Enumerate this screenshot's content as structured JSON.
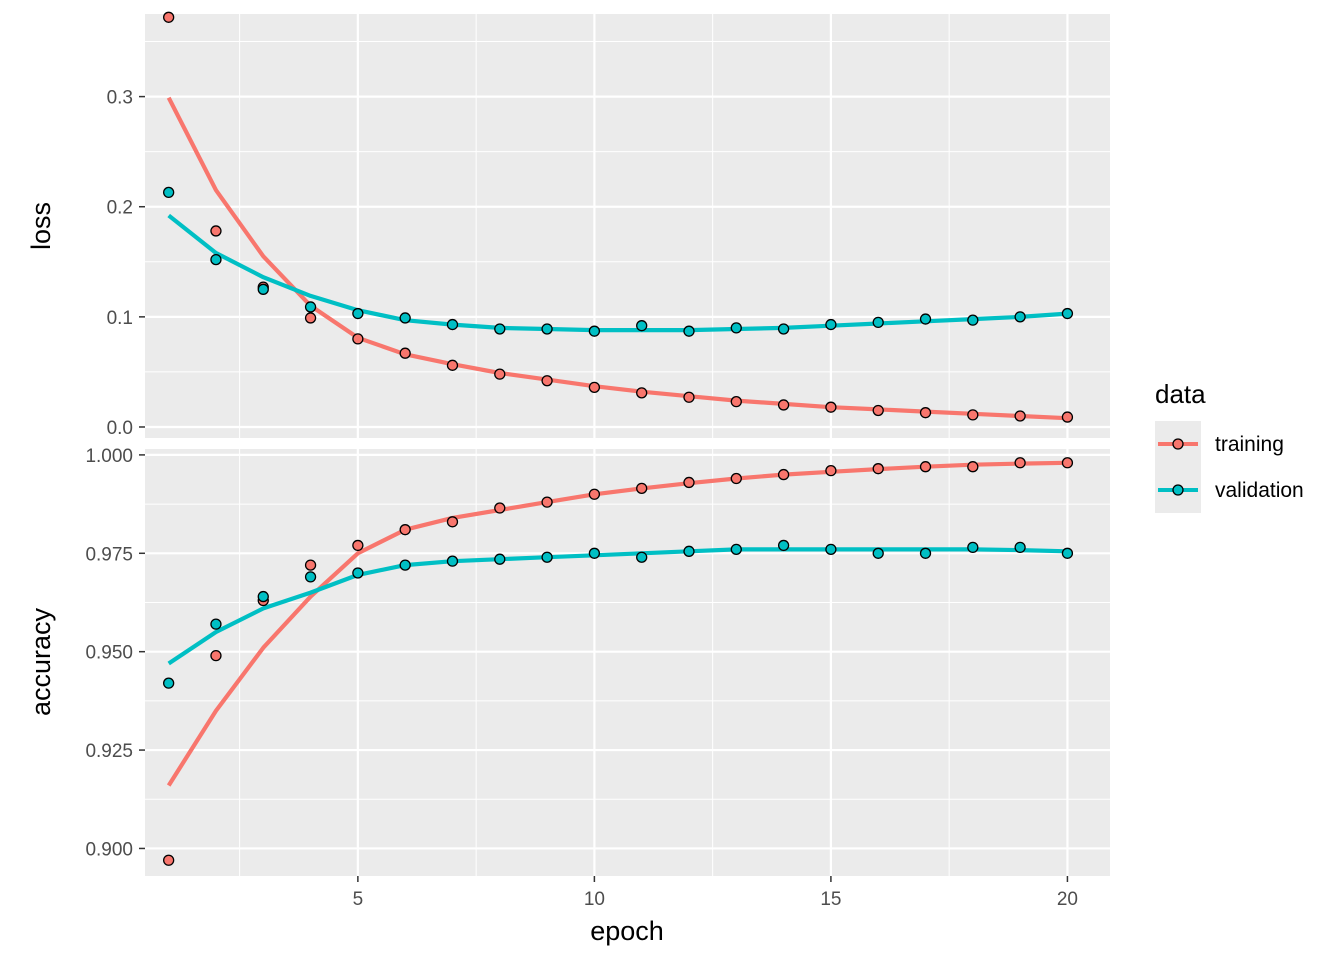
{
  "chart_data": {
    "type": "scatter",
    "facets": [
      "loss",
      "accuracy"
    ],
    "xlabel": "epoch",
    "x_ticks": [
      5,
      10,
      15,
      20
    ],
    "xlim": [
      0.5,
      20.9
    ],
    "legend": {
      "title": "data",
      "position": "right",
      "entries": [
        "training",
        "validation"
      ]
    },
    "colors": {
      "training": "#F8766D",
      "validation": "#00BFC4",
      "panel": "#EBEBEB",
      "grid": "#FFFFFF",
      "axis_text": "#4D4D4D"
    },
    "epochs": [
      1,
      2,
      3,
      4,
      5,
      6,
      7,
      8,
      9,
      10,
      11,
      12,
      13,
      14,
      15,
      16,
      17,
      18,
      19,
      20
    ],
    "panels": [
      {
        "name": "loss",
        "ylabel": "loss",
        "ylim": [
          -0.01,
          0.375
        ],
        "y_ticks": [
          0.0,
          0.1,
          0.2,
          0.3
        ],
        "y_tick_labels": [
          "0.0",
          "0.1",
          "0.2",
          "0.3"
        ],
        "series": [
          {
            "name": "training",
            "values": [
              0.372,
              0.178,
              0.127,
              0.099,
              0.08,
              0.067,
              0.056,
              0.048,
              0.042,
              0.036,
              0.031,
              0.027,
              0.023,
              0.02,
              0.018,
              0.015,
              0.013,
              0.011,
              0.01,
              0.009
            ],
            "smooth": [
              0.299,
              0.215,
              0.155,
              0.11,
              0.081,
              0.066,
              0.057,
              0.049,
              0.043,
              0.037,
              0.032,
              0.028,
              0.024,
              0.021,
              0.018,
              0.016,
              0.014,
              0.012,
              0.01,
              0.008
            ]
          },
          {
            "name": "validation",
            "values": [
              0.213,
              0.152,
              0.125,
              0.109,
              0.103,
              0.099,
              0.093,
              0.089,
              0.089,
              0.087,
              0.092,
              0.087,
              0.09,
              0.089,
              0.093,
              0.095,
              0.098,
              0.097,
              0.1,
              0.103
            ],
            "smooth": [
              0.192,
              0.158,
              0.136,
              0.119,
              0.106,
              0.097,
              0.093,
              0.09,
              0.089,
              0.088,
              0.088,
              0.088,
              0.089,
              0.09,
              0.092,
              0.094,
              0.096,
              0.098,
              0.1,
              0.103
            ]
          }
        ]
      },
      {
        "name": "accuracy",
        "ylabel": "accuracy",
        "ylim": [
          0.893,
          1.0015
        ],
        "y_ticks": [
          0.9,
          0.925,
          0.95,
          0.975,
          1.0
        ],
        "y_tick_labels": [
          "0.900",
          "0.925",
          "0.950",
          "0.975",
          "1.000"
        ],
        "series": [
          {
            "name": "training",
            "values": [
              0.897,
              0.949,
              0.963,
              0.972,
              0.977,
              0.981,
              0.983,
              0.9865,
              0.988,
              0.99,
              0.9915,
              0.993,
              0.994,
              0.995,
              0.996,
              0.9965,
              0.997,
              0.997,
              0.998,
              0.998
            ],
            "smooth": [
              0.916,
              0.935,
              0.951,
              0.964,
              0.975,
              0.981,
              0.984,
              0.986,
              0.988,
              0.99,
              0.9915,
              0.9928,
              0.994,
              0.995,
              0.9957,
              0.9964,
              0.997,
              0.9975,
              0.9978,
              0.998
            ]
          },
          {
            "name": "validation",
            "values": [
              0.942,
              0.957,
              0.964,
              0.969,
              0.97,
              0.972,
              0.973,
              0.9735,
              0.974,
              0.975,
              0.974,
              0.9755,
              0.976,
              0.977,
              0.976,
              0.975,
              0.975,
              0.9765,
              0.9765,
              0.975
            ],
            "smooth": [
              0.947,
              0.955,
              0.961,
              0.965,
              0.9695,
              0.972,
              0.973,
              0.9735,
              0.974,
              0.9745,
              0.975,
              0.9755,
              0.976,
              0.976,
              0.976,
              0.976,
              0.976,
              0.976,
              0.9758,
              0.9755
            ]
          }
        ]
      }
    ]
  }
}
